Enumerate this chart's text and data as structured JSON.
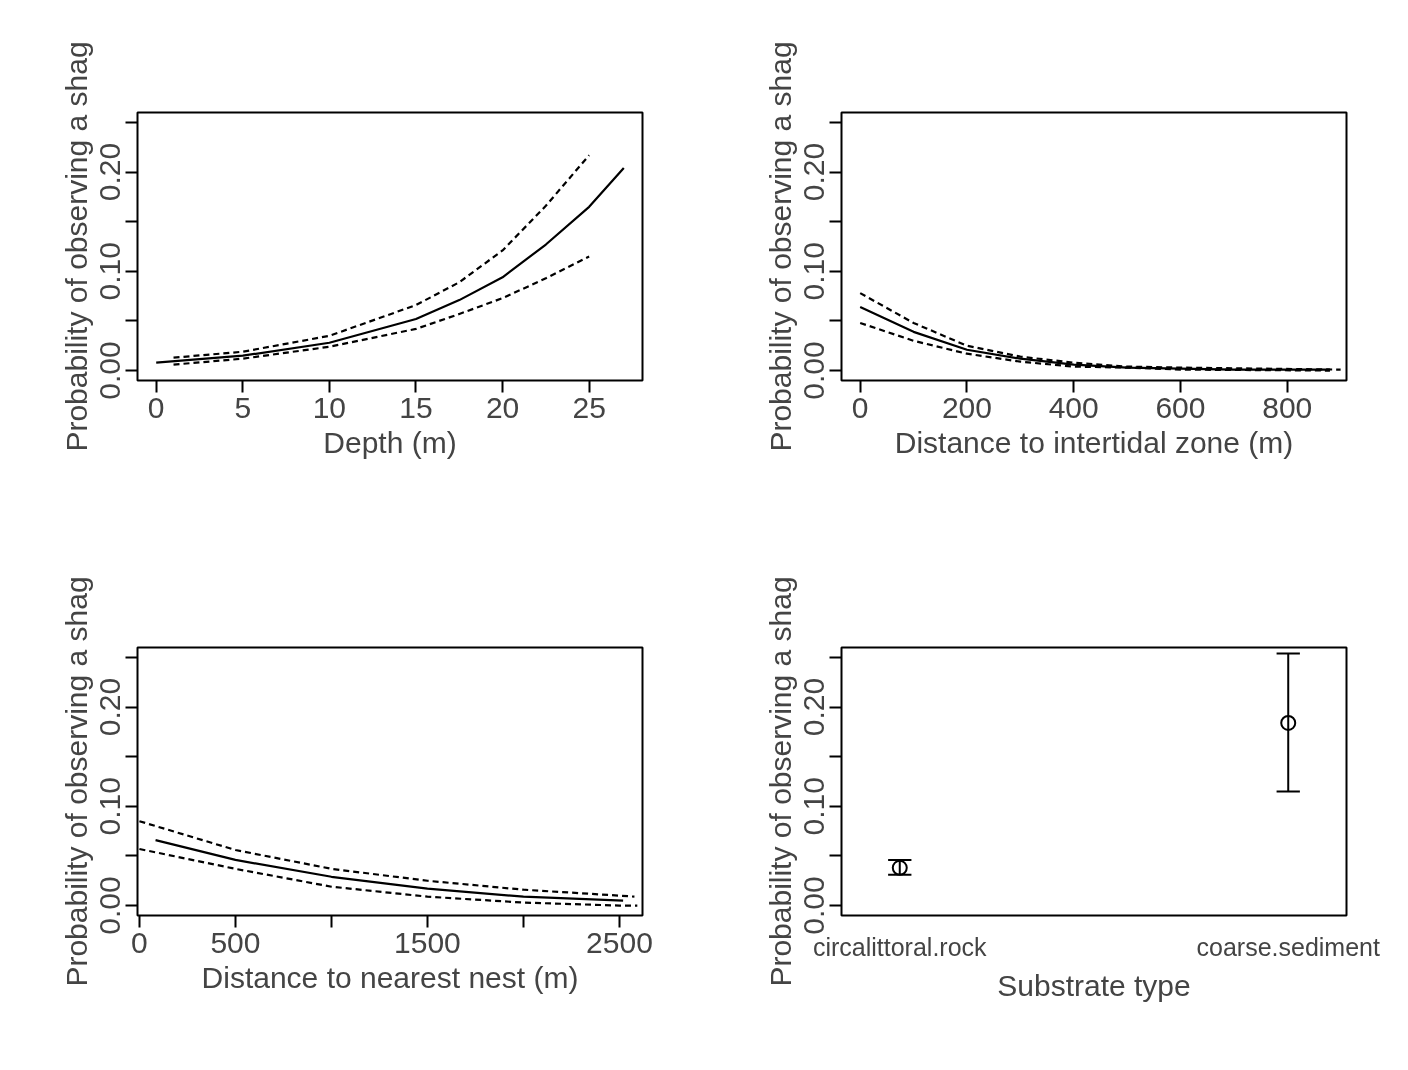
{
  "chart_data": [
    {
      "type": "line",
      "xlabel": "Depth (m)",
      "ylabel": "Probability of observing a shag",
      "xlim": [
        -1.08,
        28.08
      ],
      "ylim": [
        -0.01,
        0.26
      ],
      "xticks": [
        0,
        5,
        10,
        15,
        20,
        25
      ],
      "yticks": [
        {
          "value": 0,
          "label": "0.00"
        },
        {
          "value": 0.05,
          "label": null
        },
        {
          "value": 0.1,
          "label": "0.10"
        },
        {
          "value": 0.15,
          "label": null
        },
        {
          "value": 0.2,
          "label": "0.20"
        },
        {
          "value": 0.25,
          "label": null
        }
      ],
      "series": [
        {
          "color": "#000000",
          "line_style": "solid",
          "x": [
            0,
            5,
            10,
            15,
            17.5,
            20,
            22.5,
            25,
            27
          ],
          "values": [
            0.008,
            0.015,
            0.028,
            0.052,
            0.071,
            0.094,
            0.127,
            0.165,
            0.204
          ]
        },
        {
          "color": "#000000",
          "line_style": "dashed",
          "x": [
            1,
            5,
            10,
            15,
            17.5,
            20,
            22.5,
            25
          ],
          "values": [
            0.013,
            0.019,
            0.035,
            0.066,
            0.089,
            0.121,
            0.166,
            0.217
          ]
        },
        {
          "color": "#000000",
          "line_style": "dashed",
          "x": [
            1,
            5,
            10,
            15,
            17.5,
            20,
            22.5,
            25
          ],
          "values": [
            0.006,
            0.012,
            0.024,
            0.042,
            0.057,
            0.073,
            0.093,
            0.115
          ]
        }
      ]
    },
    {
      "type": "line",
      "xlabel": "Distance to intertidal zone (m)",
      "ylabel": "Probability of observing a shag",
      "xlim": [
        -35,
        911
      ],
      "ylim": [
        -0.01,
        0.26
      ],
      "xticks": [
        0,
        200,
        400,
        600,
        800
      ],
      "yticks": [
        {
          "value": 0,
          "label": "0.00"
        },
        {
          "value": 0.05,
          "label": null
        },
        {
          "value": 0.1,
          "label": "0.10"
        },
        {
          "value": 0.15,
          "label": null
        },
        {
          "value": 0.2,
          "label": "0.20"
        },
        {
          "value": 0.25,
          "label": null
        }
      ],
      "series": [
        {
          "color": "#000000",
          "line_style": "solid",
          "x": [
            0,
            100,
            200,
            300,
            400,
            500,
            600,
            700,
            800,
            880
          ],
          "values": [
            0.064,
            0.039,
            0.021,
            0.012,
            0.006,
            0.003,
            0.002,
            0.001,
            0.001,
            0.001
          ]
        },
        {
          "color": "#000000",
          "line_style": "dashed",
          "x": [
            0,
            100,
            200,
            300,
            400,
            500,
            600,
            900
          ],
          "values": [
            0.078,
            0.048,
            0.025,
            0.014,
            0.008,
            0.004,
            0.003,
            0.001
          ]
        },
        {
          "color": "#000000",
          "line_style": "dashed",
          "x": [
            0,
            100,
            200,
            300,
            400,
            500,
            600,
            880
          ],
          "values": [
            0.048,
            0.03,
            0.017,
            0.009,
            0.004,
            0.003,
            0.001,
            0
          ]
        }
      ]
    },
    {
      "type": "line",
      "xlabel": "Distance to nearest nest (m)",
      "ylabel": "Probability of observing a shag",
      "xlim": [
        -10,
        2620
      ],
      "ylim": [
        -0.01,
        0.26
      ],
      "xticks": [
        0,
        500,
        {
          "value": 1000,
          "label": null
        },
        1500,
        {
          "value": 2000,
          "label": null
        },
        2500
      ],
      "yticks": [
        {
          "value": 0,
          "label": "0.00"
        },
        {
          "value": 0.05,
          "label": null
        },
        {
          "value": 0.1,
          "label": "0.10"
        },
        {
          "value": 0.15,
          "label": null
        },
        {
          "value": 0.2,
          "label": "0.20"
        },
        {
          "value": 0.25,
          "label": null
        }
      ],
      "series": [
        {
          "color": "#000000",
          "line_style": "solid",
          "x": [
            84,
            500,
            1000,
            1500,
            2000,
            2519
          ],
          "values": [
            0.066,
            0.046,
            0.029,
            0.017,
            0.009,
            0.005
          ]
        },
        {
          "color": "#000000",
          "line_style": "dashed",
          "x": [
            0,
            500,
            1000,
            1500,
            2000,
            2500,
            2578
          ],
          "values": [
            0.085,
            0.056,
            0.037,
            0.025,
            0.016,
            0.01,
            0.009
          ]
        },
        {
          "color": "#000000",
          "line_style": "dashed",
          "x": [
            0,
            500,
            1000,
            1500,
            2000,
            2500,
            2593
          ],
          "values": [
            0.057,
            0.037,
            0.019,
            0.009,
            0.003,
            0.0,
            0.0
          ]
        }
      ]
    },
    {
      "type": "scatter",
      "xlabel": "Substrate type",
      "ylabel": "Probability of observing a shag",
      "ylim": [
        -0.01,
        0.26
      ],
      "categories": [
        "circalittoral.rock",
        "coarse.sediment"
      ],
      "yticks": [
        {
          "value": 0,
          "label": "0.00"
        },
        {
          "value": 0.05,
          "label": null
        },
        {
          "value": 0.1,
          "label": "0.10"
        },
        {
          "value": 0.15,
          "label": null
        },
        {
          "value": 0.2,
          "label": "0.20"
        },
        {
          "value": 0.25,
          "label": null
        }
      ],
      "marker": "circle",
      "color": "#000000",
      "values": [
        0.038,
        0.184
      ],
      "errors": [
        [
          0.031,
          0.046
        ],
        [
          0.115,
          0.254
        ]
      ]
    }
  ]
}
